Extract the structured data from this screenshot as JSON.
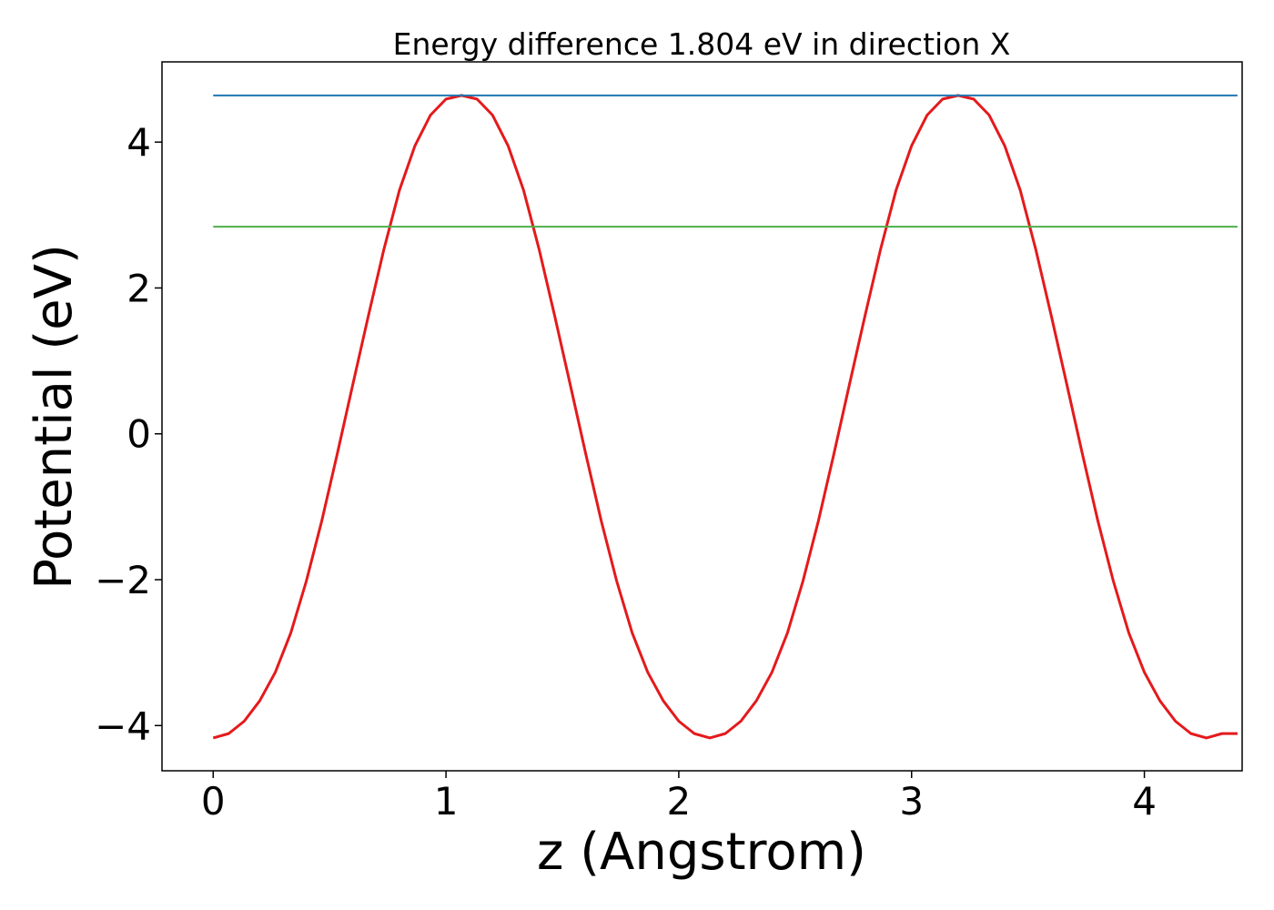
{
  "chart_data": {
    "type": "line",
    "title": "Energy difference 1.804 eV in direction X",
    "xlabel": "z (Angstrom)",
    "ylabel": "Potential (eV)",
    "xlim": [
      -0.22,
      4.42
    ],
    "ylim": [
      -4.62,
      5.1
    ],
    "xticks": [
      0,
      1,
      2,
      3,
      4
    ],
    "yticks": [
      -4,
      -2,
      0,
      2,
      4
    ],
    "xtick_labels": [
      "0",
      "1",
      "2",
      "3",
      "4"
    ],
    "ytick_labels": [
      "−4",
      "−2",
      "0",
      "2",
      "4"
    ],
    "grid": false,
    "legend": "none",
    "series": [
      {
        "color": "#e41a1c",
        "x": [
          0,
          0.0667,
          0.1333,
          0.2,
          0.2667,
          0.3333,
          0.4,
          0.4667,
          0.5333,
          0.6,
          0.6667,
          0.7333,
          0.8,
          0.8667,
          0.9333,
          1.0,
          1.0667,
          1.1333,
          1.2,
          1.2667,
          1.3333,
          1.4,
          1.4667,
          1.5333,
          1.6,
          1.6667,
          1.7333,
          1.8,
          1.8667,
          1.9333,
          2.0,
          2.0667,
          2.1333,
          2.2,
          2.2667,
          2.3333,
          2.4,
          2.4667,
          2.5333,
          2.6,
          2.6667,
          2.7333,
          2.8,
          2.8667,
          2.9333,
          3.0,
          3.0667,
          3.1333,
          3.2,
          3.2667,
          3.3333,
          3.4,
          3.4667,
          3.5333,
          3.6,
          3.6667,
          3.7333,
          3.8,
          3.8667,
          3.9333,
          4.0,
          4.0667,
          4.1333,
          4.2,
          4.2667,
          4.3333,
          4.4
        ],
        "y": [
          -4.17,
          -4.11,
          -3.94,
          -3.66,
          -3.27,
          -2.73,
          -2.02,
          -1.19,
          -0.27,
          0.68,
          1.62,
          2.53,
          3.34,
          3.95,
          4.37,
          4.59,
          4.64,
          4.59,
          4.37,
          3.95,
          3.34,
          2.53,
          1.62,
          0.68,
          -0.27,
          -1.19,
          -2.02,
          -2.73,
          -3.27,
          -3.66,
          -3.94,
          -4.11,
          -4.17,
          -4.11,
          -3.94,
          -3.66,
          -3.27,
          -2.73,
          -2.02,
          -1.19,
          -0.27,
          0.68,
          1.62,
          2.53,
          3.34,
          3.95,
          4.37,
          4.59,
          4.64,
          4.59,
          4.37,
          3.95,
          3.34,
          2.53,
          1.62,
          0.68,
          -0.27,
          -1.19,
          -2.02,
          -2.73,
          -3.27,
          -3.66,
          -3.94,
          -4.11,
          -4.17,
          -4.11,
          -4.11
        ]
      },
      {
        "color": "#1f77b4",
        "x": [
          0,
          4.4
        ],
        "y": [
          4.64,
          4.64
        ]
      },
      {
        "color": "#4daf4a",
        "x": [
          0,
          4.4
        ],
        "y": [
          2.84,
          2.84
        ]
      }
    ]
  }
}
